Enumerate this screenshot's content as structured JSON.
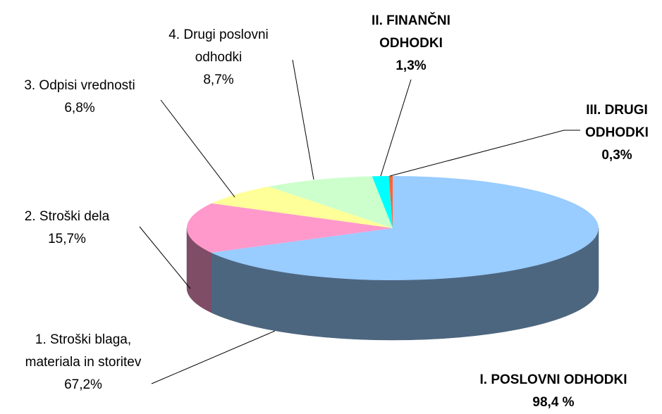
{
  "chart_data": {
    "type": "pie3d",
    "categories": [
      "1. Stroški blaga, materiala in storitev",
      "2. Stroški dela",
      "3. Odpisi vrednosti",
      "4. Drugi poslovni odhodki",
      "II. FINANČNI ODHODKI",
      "III. DRUGI ODHODKI"
    ],
    "values": [
      67.2,
      15.7,
      6.8,
      8.7,
      1.3,
      0.3
    ],
    "value_labels": [
      "67,2%",
      "15,7%",
      "6,8%",
      "8,7%",
      "1,3%",
      "0,3%"
    ],
    "colors": [
      "#99ccff",
      "#ff99cc",
      "#ffff99",
      "#ccffcc",
      "#00ffff",
      "#ff6633"
    ],
    "annotation": {
      "text": "I. POSLOVNI ODHODKI",
      "label": "98,4 %"
    }
  }
}
